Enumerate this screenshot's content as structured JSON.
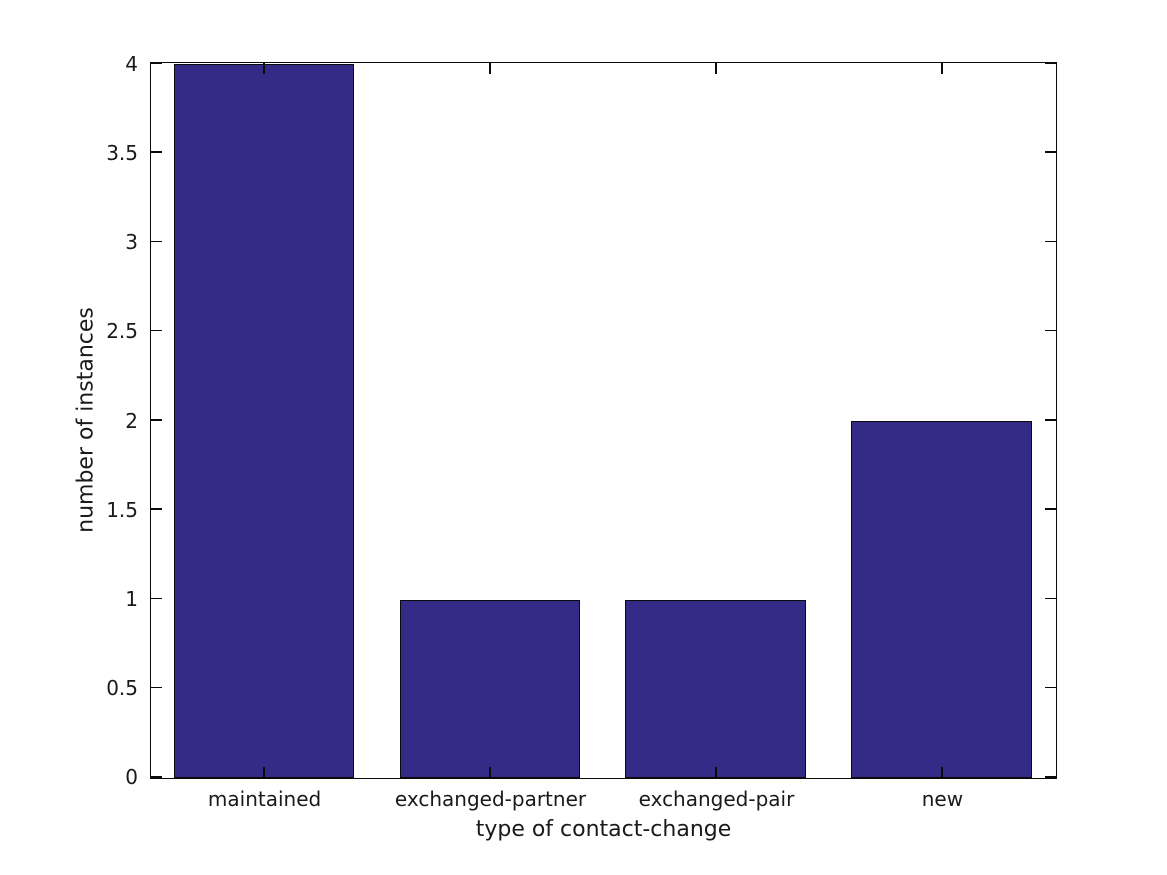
{
  "figure": {
    "background_color": "#ffffff",
    "axis_color": "#0b0b0b",
    "text_color": "#1a1a1a"
  },
  "chart_data": {
    "type": "bar",
    "title": "",
    "categories": [
      "maintained",
      "exchanged-partner",
      "exchanged-pair",
      "new"
    ],
    "values": [
      4,
      1,
      1,
      2
    ],
    "xlabel": "type of contact-change",
    "ylabel": "number of instances",
    "ylim": [
      0,
      4
    ],
    "yticks": [
      0,
      0.5,
      1,
      1.5,
      2,
      2.5,
      3,
      3.5,
      4
    ],
    "ytick_labels": [
      "0",
      "0.5",
      "1",
      "1.5",
      "2",
      "2.5",
      "3",
      "3.5",
      "4"
    ],
    "bar_color": "#342B87",
    "bar_edge_color": "#0b0b0b",
    "bar_width_fraction": 0.8,
    "grid": false,
    "legend": null,
    "box": true,
    "tick_direction": "in"
  }
}
